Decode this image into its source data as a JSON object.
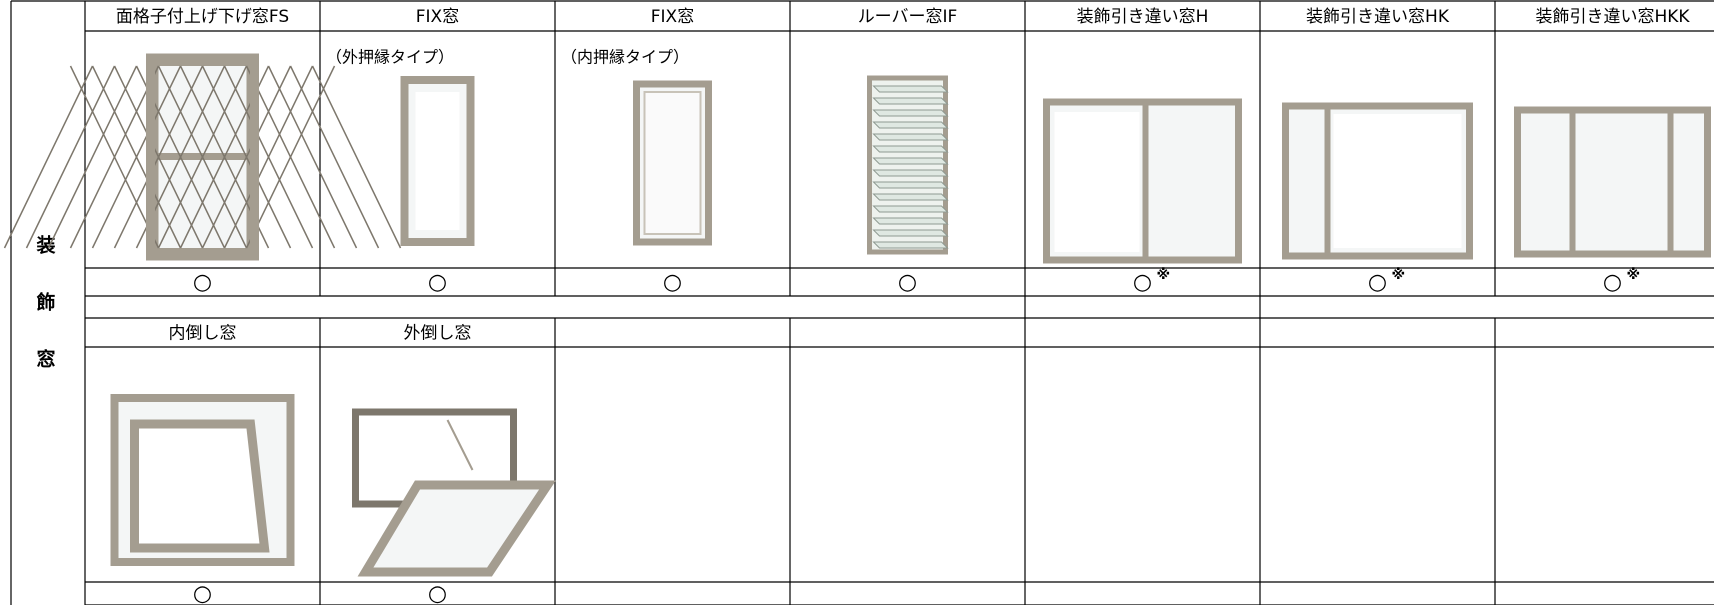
{
  "table": {
    "side_label": "装飾窓",
    "rows": [
      {
        "cells": [
          {
            "name": "面格子付上げ下げ窓FS",
            "mark": "○"
          },
          {
            "name": "FIX窓",
            "note": "（外押縁タイプ）",
            "mark": "○"
          },
          {
            "name": "FIX窓",
            "note": "（内押縁タイプ）",
            "mark": "○"
          },
          {
            "name": "ルーバー窓IF",
            "mark": "○"
          },
          {
            "name": "装飾引き違い窓H",
            "mark": "○",
            "remark": "※"
          },
          {
            "name": "装飾引き違い窓HK",
            "mark": "○",
            "remark": "※"
          },
          {
            "name": "装飾引き違い窓HKK",
            "mark": "○",
            "remark": "※"
          }
        ]
      },
      {
        "cells": [
          {
            "name": "内倒し窓",
            "mark": "○"
          },
          {
            "name": "外倒し窓",
            "mark": "○"
          }
        ]
      }
    ]
  }
}
